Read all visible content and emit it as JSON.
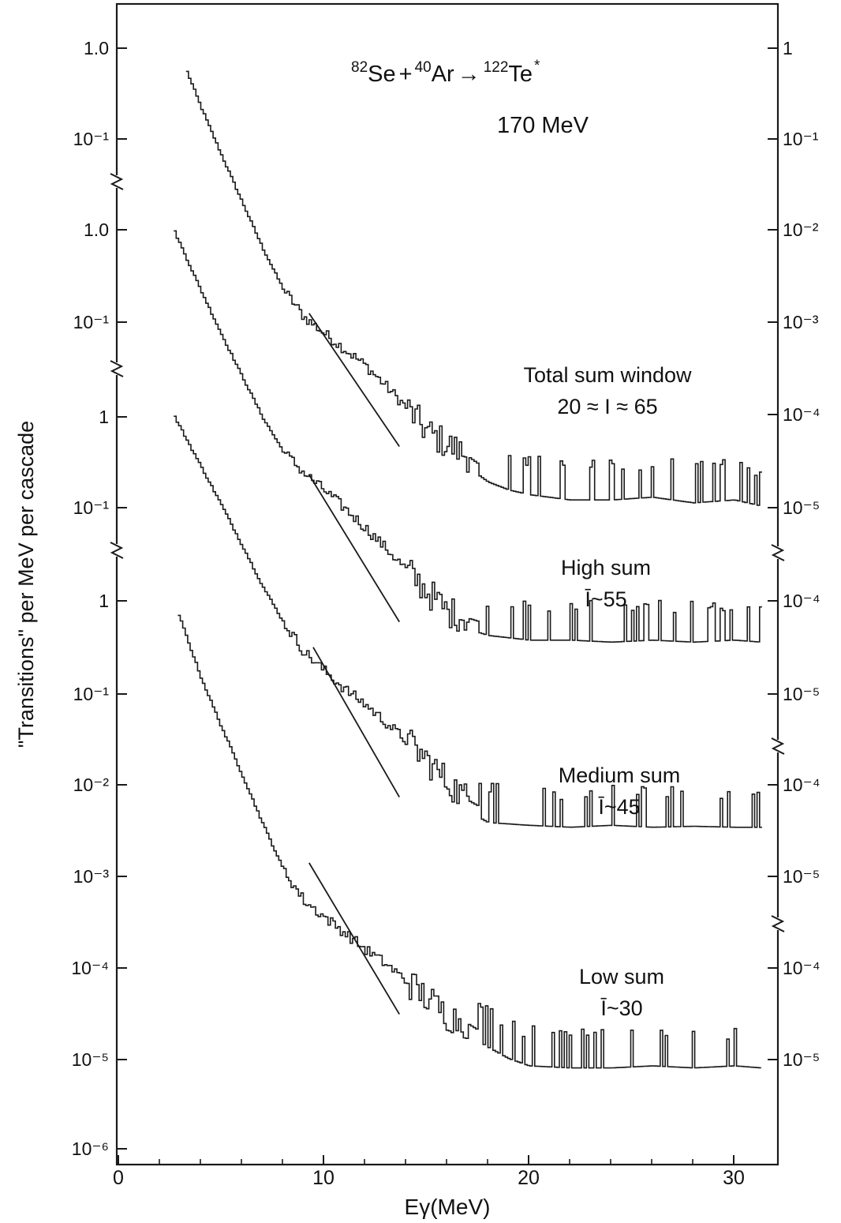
{
  "chart_data": {
    "type": "line",
    "title": "Se + Ar → Te",
    "title_parts": {
      "a1": "82",
      "s1": "Se",
      "plus": "+",
      "a2": "40",
      "s2": "Ar",
      "arrow": "→",
      "a3": "122",
      "s3": "Te",
      "star": "*"
    },
    "subtitle": "170 MeV",
    "xlabel": "Eγ(MeV)",
    "ylabel": "\"Transitions\" per MeV per cascade",
    "xlim": [
      0,
      32
    ],
    "x_ticks": [
      "0",
      "10",
      "20",
      "30"
    ],
    "y_scale": "log",
    "grid": false,
    "legend": "none",
    "stroke_color": "#1a1a1a",
    "panels": [
      {
        "name": "Total sum window",
        "annotation": [
          "Total sum window",
          "20 ≈ I ≈ 65"
        ],
        "left_ticks": [
          "1.0",
          "10⁻¹"
        ],
        "right_ticks": [
          "1",
          "10⁻¹",
          "10⁻²",
          "10⁻³",
          "10⁻⁴",
          "10⁻⁵"
        ],
        "series": {
          "x": [
            3.3,
            4,
            5,
            6,
            7,
            8,
            9,
            10,
            11,
            12,
            13,
            14,
            15,
            16,
            17,
            18,
            19,
            20,
            22,
            24,
            26,
            28,
            30,
            31.3
          ],
          "values": [
            0.55,
            0.22,
            0.065,
            0.02,
            0.0062,
            0.0022,
            0.0011,
            0.00072,
            0.00048,
            0.00032,
            0.00019,
            0.00011,
            6e-05,
            4.3e-05,
            3.2e-05,
            2.2e-05,
            1.8e-05,
            1.6e-05,
            1.4e-05,
            1.4e-05,
            1.5e-05,
            1.3e-05,
            1.4e-05,
            1.2e-05
          ]
        },
        "slope_line": {
          "x": [
            9.3,
            13.7
          ],
          "values": [
            0.0012,
            4.1e-05
          ]
        }
      },
      {
        "name": "High sum",
        "annotation": [
          "High sum",
          "Ī~55"
        ],
        "left_ticks": [
          "1.0",
          "10⁻¹"
        ],
        "right_ticks": [
          "10⁻⁴",
          "10⁻⁵"
        ],
        "series": {
          "x": [
            2.7,
            4,
            5,
            6,
            7,
            8,
            9,
            10,
            11,
            12,
            13,
            14,
            15,
            16,
            18,
            20,
            22,
            24,
            26,
            28,
            30,
            31.3
          ],
          "values": [
            0.95,
            0.21,
            0.069,
            0.024,
            0.0085,
            0.0036,
            0.0021,
            0.00135,
            0.00085,
            0.00052,
            0.00031,
            0.00018,
            0.000105,
            6.2e-05,
            4.5e-05,
            4e-05,
            4e-05,
            3.8e-05,
            4e-05,
            3.8e-05,
            4e-05,
            3.8e-05
          ]
        },
        "slope_line": {
          "x": [
            9.3,
            13.7
          ],
          "values": [
            0.002,
            4.8e-05
          ]
        }
      },
      {
        "name": "Medium sum",
        "annotation": [
          "Medium sum",
          "Ī~45"
        ],
        "left_ticks": [
          "1",
          "10⁻¹"
        ],
        "right_ticks": [
          "10⁻⁴",
          "10⁻⁵"
        ],
        "series": {
          "x": [
            2.7,
            4,
            5,
            6,
            7,
            8,
            9,
            10,
            11,
            12,
            13,
            14,
            15,
            16,
            17,
            18,
            20,
            22,
            24,
            26,
            28,
            30,
            31.3
          ],
          "values": [
            1.0,
            0.28,
            0.105,
            0.038,
            0.0135,
            0.0055,
            0.0026,
            0.0016,
            0.001,
            0.00068,
            0.00043,
            0.00027,
            0.000165,
            9.5e-05,
            6e-05,
            4.5e-05,
            4.2e-05,
            4e-05,
            4.2e-05,
            4e-05,
            4.1e-05,
            4e-05,
            4e-05
          ]
        },
        "slope_line": {
          "x": [
            9.5,
            13.7
          ],
          "values": [
            0.0029,
            6.5e-05
          ]
        }
      },
      {
        "name": "Low sum",
        "annotation": [
          "Low sum",
          "Ī~30"
        ],
        "left_ticks": [
          "1",
          "10⁻¹",
          "10⁻²",
          "10⁻³",
          "10⁻⁴",
          "10⁻⁵",
          "10⁻⁶"
        ],
        "right_ticks": [
          "10⁻⁴",
          "10⁻⁵"
        ],
        "series": {
          "x": [
            2.9,
            4,
            5,
            6,
            7,
            8,
            9,
            10,
            11,
            12,
            13,
            14,
            15,
            16,
            17,
            18,
            19,
            20,
            22,
            24,
            26,
            28,
            30,
            31.3
          ],
          "values": [
            0.7,
            0.14,
            0.04,
            0.012,
            0.0035,
            0.0011,
            0.0005,
            0.00033,
            0.00022,
            0.000145,
            0.0001,
            6.5e-05,
            4.2e-05,
            2.7e-05,
            2.2e-05,
            1.6e-05,
            1.2e-05,
            1e-05,
            9.5e-06,
            9.5e-06,
            1e-05,
            9.5e-06,
            1e-05,
            9.5e-06
          ]
        },
        "slope_line": {
          "x": [
            9.3,
            13.7
          ],
          "values": [
            0.0013,
            2.8e-05
          ]
        }
      }
    ]
  }
}
